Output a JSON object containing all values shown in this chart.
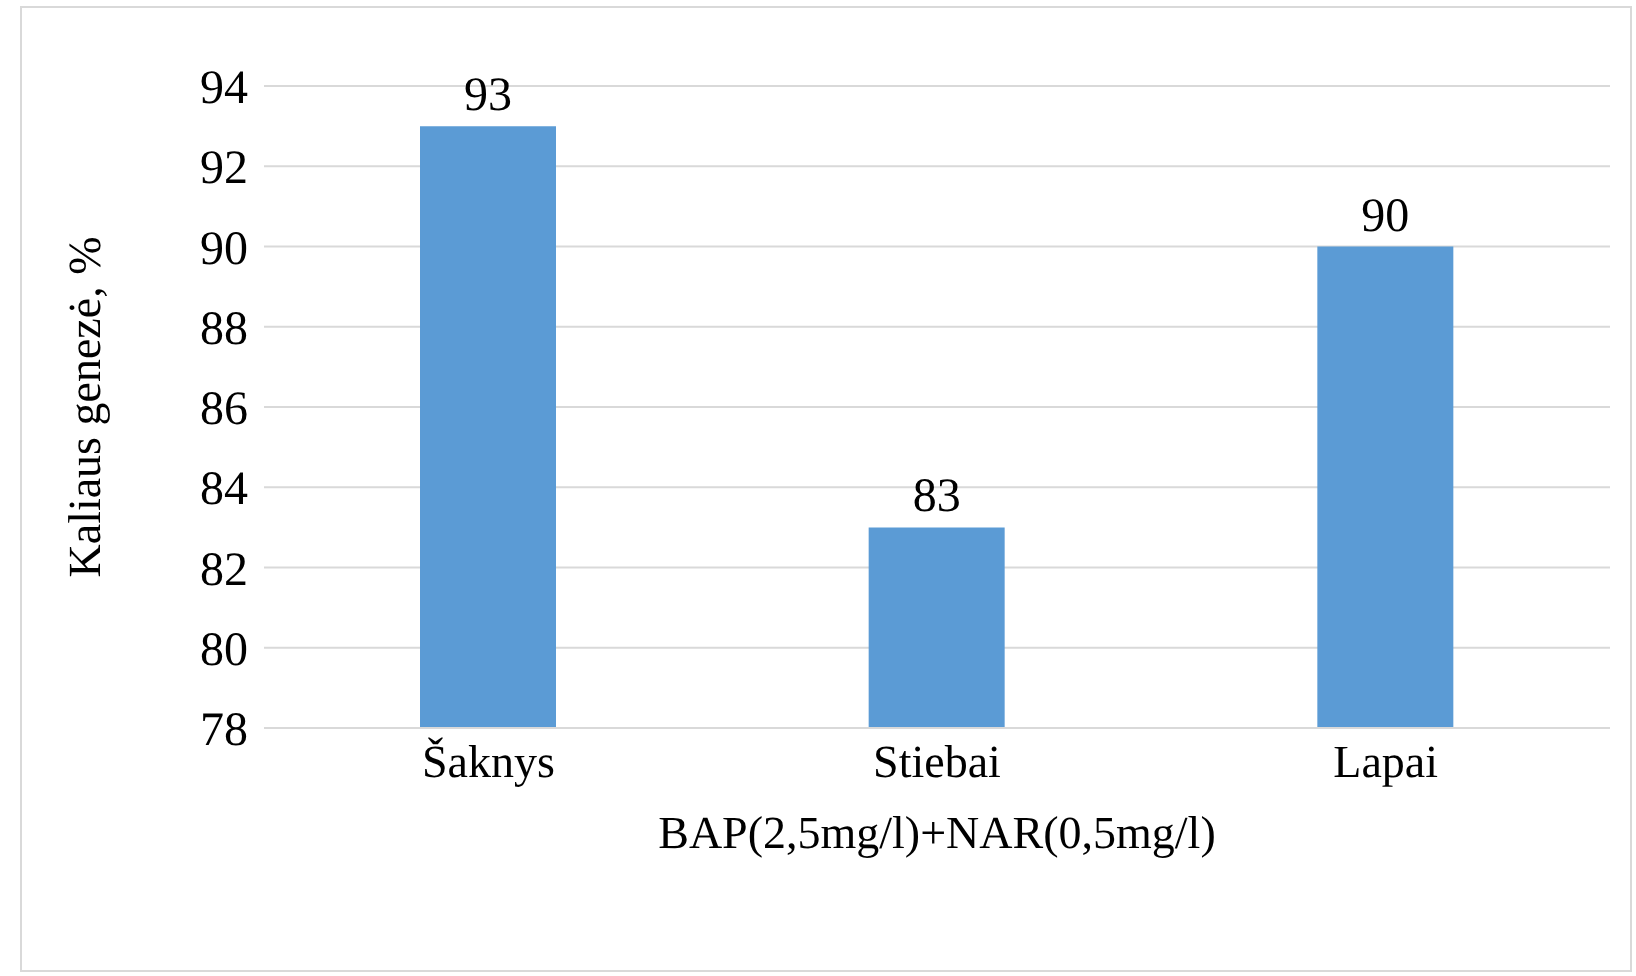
{
  "chart_data": {
    "type": "bar",
    "xlabel": "BAP(2,5mg/l)+NAR(0,5mg/l)",
    "ylabel": "Kaliaus genezė, %",
    "categories": [
      "Šaknys",
      "Stiebai",
      "Lapai"
    ],
    "values": [
      93,
      83,
      90
    ],
    "color": "#5b9bd5",
    "ylim": [
      78,
      94
    ],
    "yticks": [
      78,
      80,
      82,
      84,
      86,
      88,
      90,
      92,
      94
    ],
    "grid": "y",
    "data_labels": true
  }
}
